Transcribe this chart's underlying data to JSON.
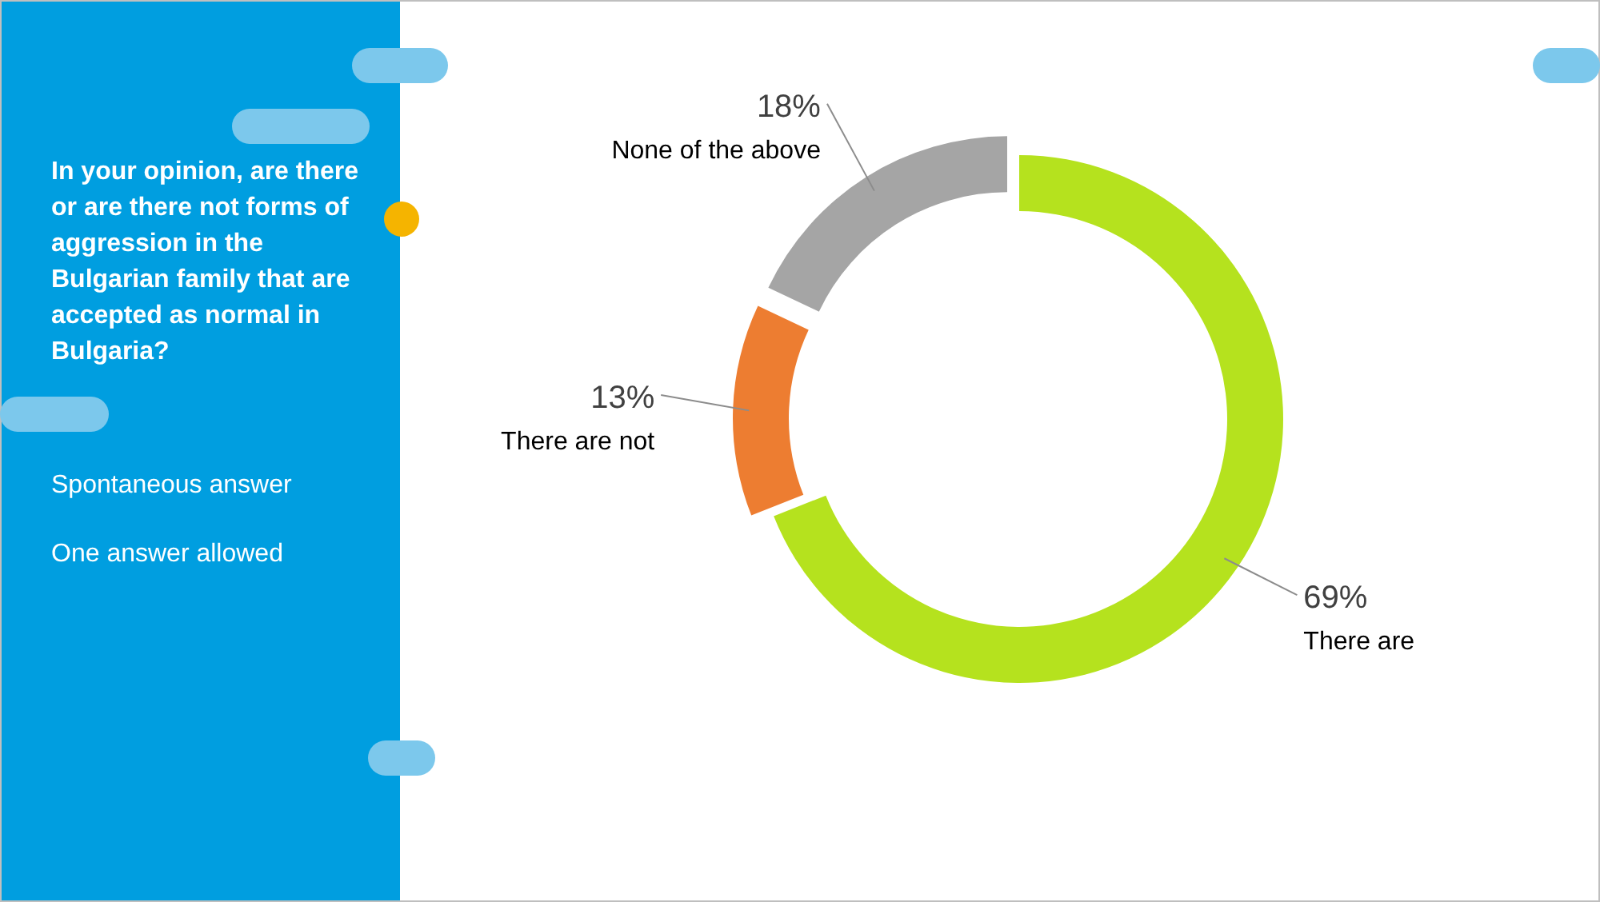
{
  "chart_data": {
    "type": "donut",
    "title": "In your opinion, are there or are there not forms of aggression in the Bulgarian family that are accepted as normal in Bulgaria?",
    "annotations": [
      "Spontaneous answer",
      "One answer allowed"
    ],
    "categories": [
      "There are",
      "There are not",
      "None of the above"
    ],
    "values": [
      69,
      13,
      18
    ],
    "value_labels": [
      "69%",
      "13%",
      "18%"
    ],
    "colors": [
      "#b5e21e",
      "#ed7d31",
      "#a5a5a5"
    ]
  }
}
